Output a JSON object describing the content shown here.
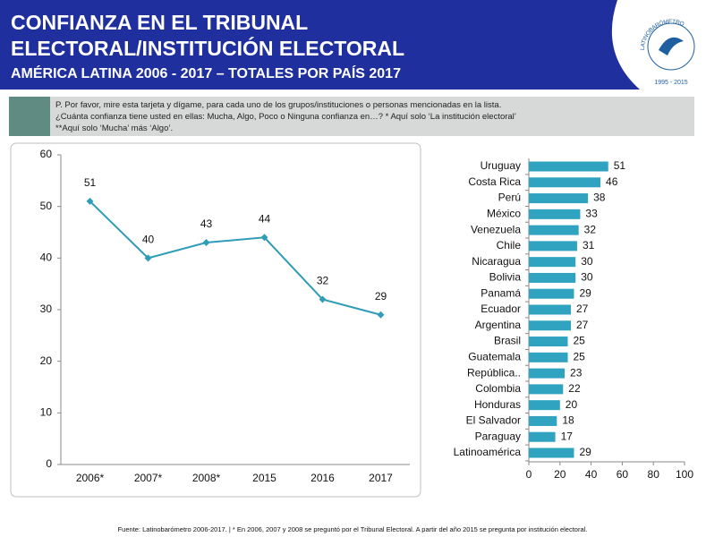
{
  "header": {
    "title_lines": [
      "CONFIANZA EN EL TRIBUNAL",
      "ELECTORAL/INSTITUCIÓN ELECTORAL"
    ],
    "subtitle": "AMÉRICA LATINA 2006 - 2017 – TOTALES POR PAÍS 2017",
    "logo_name": "LATINOBARÓMETRO",
    "logo_years": "1995 - 2015"
  },
  "question": [
    "P. Por favor, mire esta tarjeta y dígame, para cada uno de los grupos/instituciones o personas mencionadas en la lista.",
    "¿Cuánta confianza tiene usted en ellas: Mucha, Algo, Poco o Ninguna confianza en…? * Aquí solo ‘La institución electoral’",
    "**Aquí solo ‘Mucha’ más ‘Algo’."
  ],
  "source": "Fuente: Latinobarómetro 2006-2017. | * En 2006, 2007 y 2008 se preguntó por el Tribunal Electoral. A partir del año 2015 se pregunta por institución electoral.",
  "chart_data": [
    {
      "type": "line",
      "categories": [
        "2006*",
        "2007*",
        "2008*",
        "2015",
        "2016",
        "2017"
      ],
      "values": [
        51,
        40,
        43,
        44,
        32,
        29
      ],
      "color": "#2f9db7",
      "ylim": [
        0,
        60
      ],
      "yticks": [
        0,
        10,
        20,
        30,
        40,
        50,
        60
      ],
      "data_labels": true
    },
    {
      "type": "hbar",
      "categories": [
        "Uruguay",
        "Costa Rica",
        "Perú",
        "México",
        "Venezuela",
        "Chile",
        "Nicaragua",
        "Bolivia",
        "Panamá",
        "Ecuador",
        "Argentina",
        "Brasil",
        "Guatemala",
        "República..",
        "Colombia",
        "Honduras",
        "El Salvador",
        "Paraguay",
        "Latinoamérica"
      ],
      "values": [
        51,
        46,
        38,
        33,
        32,
        31,
        30,
        30,
        29,
        27,
        27,
        25,
        25,
        23,
        22,
        20,
        18,
        17,
        29
      ],
      "color": "#2fa3bf",
      "xlim": [
        0,
        100
      ],
      "xticks": [
        0,
        20,
        40,
        60,
        80,
        100
      ],
      "data_labels": true
    }
  ]
}
